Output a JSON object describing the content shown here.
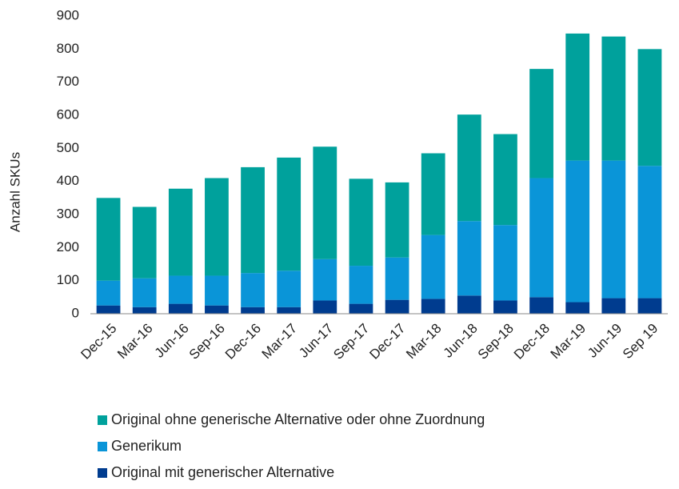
{
  "chart_data": {
    "type": "stacked_bar",
    "y_label": "Anzahl SKUs",
    "categories": [
      "Dec-15",
      "Mar-16",
      "Jun-16",
      "Sep-16",
      "Dec-16",
      "Mar-17",
      "Jun-17",
      "Sep-17",
      "Dec-17",
      "Mar-18",
      "Jun-18",
      "Sep-18",
      "Dec-18",
      "Mar-19",
      "Jun-19",
      "Sep 19"
    ],
    "series": [
      {
        "name": "Original ohne generische Alternative oder ohne Zuordnung",
        "color": "#00a19c",
        "values": [
          250,
          216,
          263,
          295,
          320,
          342,
          340,
          263,
          227,
          247,
          322,
          275,
          330,
          384,
          375,
          353
        ]
      },
      {
        "name": "Generikum",
        "color": "#0a95d8",
        "values": [
          75,
          87,
          85,
          90,
          103,
          110,
          125,
          115,
          128,
          193,
          225,
          228,
          360,
          428,
          416,
          400
        ]
      },
      {
        "name": "Original mit generischer Alternative",
        "color": "#003c8f",
        "values": [
          25,
          20,
          30,
          25,
          20,
          20,
          40,
          30,
          42,
          45,
          55,
          40,
          50,
          35,
          47,
          47
        ]
      }
    ],
    "ylim": [
      0,
      900
    ],
    "yticks": [
      0,
      100,
      200,
      300,
      400,
      500,
      600,
      700,
      800,
      900
    ],
    "grid": false
  }
}
